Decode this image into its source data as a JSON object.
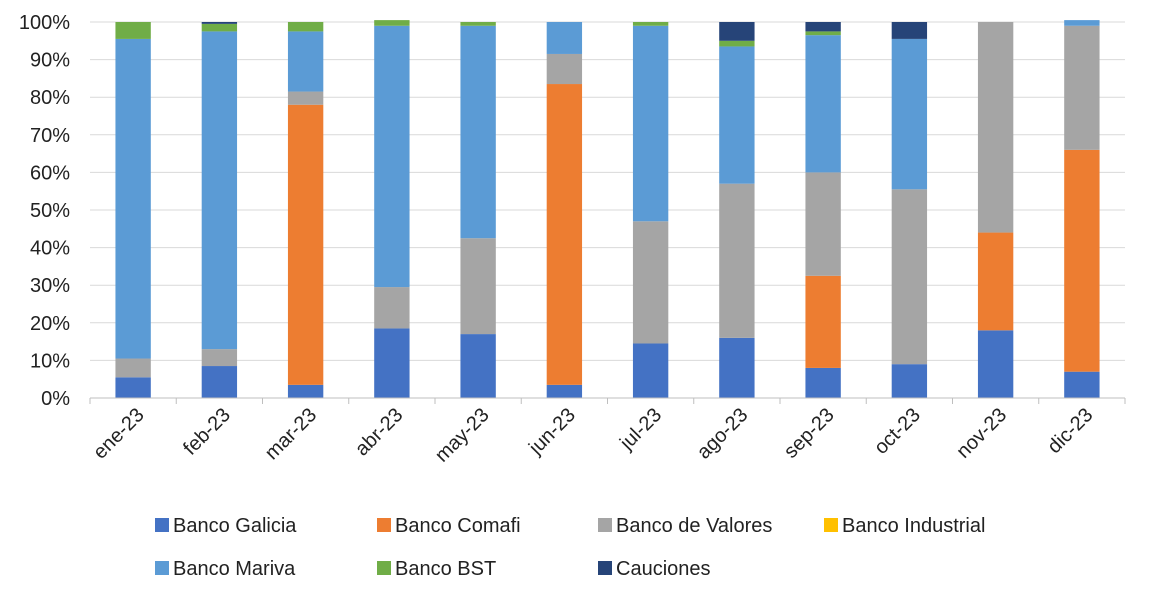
{
  "chart_data": {
    "type": "bar",
    "stacked": true,
    "normalized": true,
    "categories": [
      "ene-23",
      "feb-23",
      "mar-23",
      "abr-23",
      "may-23",
      "jun-23",
      "jul-23",
      "ago-23",
      "sep-23",
      "oct-23",
      "nov-23",
      "dic-23"
    ],
    "yticks": [
      "0%",
      "10%",
      "20%",
      "30%",
      "40%",
      "50%",
      "60%",
      "70%",
      "80%",
      "90%",
      "100%"
    ],
    "ylim": [
      0,
      100
    ],
    "legend_position": "bottom",
    "series": [
      {
        "name": "Banco Galicia",
        "color": "#4472C4",
        "values": [
          5.5,
          8.5,
          3.5,
          18.5,
          17,
          3.5,
          14.5,
          16,
          8,
          9,
          18,
          7
        ]
      },
      {
        "name": "Banco Comafi",
        "color": "#ED7D31",
        "values": [
          0,
          0,
          74.5,
          0,
          0,
          80,
          0,
          0,
          24.5,
          0,
          26,
          59
        ]
      },
      {
        "name": "Banco de Valores",
        "color": "#A5A5A5",
        "values": [
          5,
          4.5,
          3.5,
          11,
          25.5,
          8,
          32.5,
          41,
          27.5,
          46.5,
          56,
          33
        ]
      },
      {
        "name": "Banco Industrial",
        "color": "#FFC000",
        "values": [
          0,
          0,
          0,
          0,
          0,
          0,
          0,
          0,
          0,
          0,
          0,
          0
        ]
      },
      {
        "name": "Banco Mariva",
        "color": "#5B9BD5",
        "values": [
          85,
          84.5,
          16,
          69.5,
          56.5,
          8.5,
          52,
          36.5,
          36.5,
          40,
          0,
          1.5
        ]
      },
      {
        "name": "Banco BST",
        "color": "#70AD47",
        "values": [
          4.5,
          2,
          2.5,
          1.5,
          1,
          0,
          1,
          1.5,
          1,
          0,
          0,
          0
        ]
      },
      {
        "name": "Cauciones",
        "color": "#264478",
        "values": [
          0,
          0.5,
          0,
          0,
          0,
          0,
          0,
          5,
          2.5,
          4.5,
          0,
          0
        ]
      }
    ]
  }
}
